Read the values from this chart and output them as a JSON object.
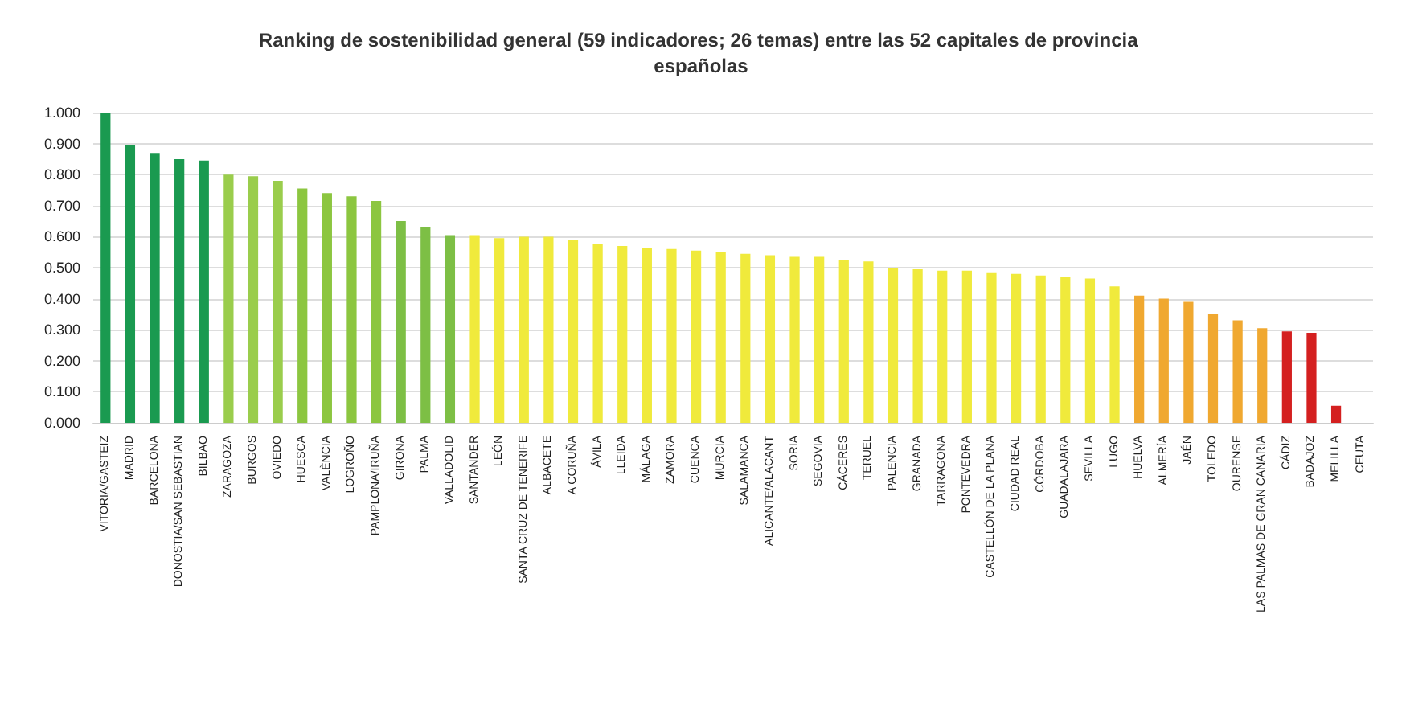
{
  "chart_data": {
    "type": "bar",
    "title": "Ranking de sostenibilidad general (59 indicadores; 26 temas) entre las 52 capitales de provincia españolas",
    "categories": [
      "VITORIA/GASTEIZ",
      "MADRID",
      "BARCELONA",
      "DONOSTIA/SAN SEBASTIAN",
      "BILBAO",
      "ZARAGOZA",
      "BURGOS",
      "OVIEDO",
      "HUESCA",
      "VALÈNCIA",
      "LOGROÑO",
      "PAMPLONA/IRUÑA",
      "GIRONA",
      "PALMA",
      "VALLADOLID",
      "SANTANDER",
      "LEÓN",
      "SANTA CRUZ DE TENERIFE",
      "ALBACETE",
      "A CORUÑA",
      "ÁVILA",
      "LLEIDA",
      "MÁLAGA",
      "ZAMORA",
      "CUENCA",
      "MURCIA",
      "SALAMANCA",
      "ALICANTE/ALACANT",
      "SORIA",
      "SEGOVIA",
      "CÁCERES",
      "TERUEL",
      "PALENCIA",
      "GRANADA",
      "TARRAGONA",
      "PONTEVEDRA",
      "CASTELLÓN DE LA PLANA",
      "CIUDAD REAL",
      "CÓRDOBA",
      "GUADALAJARA",
      "SEVILLA",
      "LUGO",
      "HUELVA",
      "ALMERÍA",
      "JAÉN",
      "TOLEDO",
      "OURENSE",
      "LAS PALMAS DE GRAN CANARIA",
      "CÁDIZ",
      "BADAJOZ",
      "MELILLA",
      "CEUTA"
    ],
    "values": [
      1.0,
      0.895,
      0.87,
      0.85,
      0.845,
      0.8,
      0.795,
      0.78,
      0.755,
      0.74,
      0.73,
      0.715,
      0.65,
      0.63,
      0.605,
      0.605,
      0.595,
      0.6,
      0.6,
      0.59,
      0.575,
      0.57,
      0.565,
      0.56,
      0.555,
      0.55,
      0.545,
      0.54,
      0.535,
      0.535,
      0.525,
      0.52,
      0.5,
      0.495,
      0.49,
      0.49,
      0.485,
      0.48,
      0.475,
      0.47,
      0.465,
      0.44,
      0.41,
      0.4,
      0.39,
      0.35,
      0.33,
      0.305,
      0.295,
      0.29,
      0.055,
      0
    ],
    "colors": [
      "#1a9a50",
      "#1a9a50",
      "#1a9a50",
      "#1a9a50",
      "#1a9a50",
      "#9acd4c",
      "#9acd4c",
      "#9acd4c",
      "#8cc640",
      "#8cc640",
      "#8cc640",
      "#8cc640",
      "#7dbf45",
      "#7dbf45",
      "#7dbf45",
      "#f0ea3c",
      "#f0ea3c",
      "#f0ea3c",
      "#f0ea3c",
      "#f0ea3c",
      "#f0ea3c",
      "#f0ea3c",
      "#f0ea3c",
      "#f0ea3c",
      "#f0ea3c",
      "#f0ea3c",
      "#f0ea3c",
      "#f0ea3c",
      "#f0ea3c",
      "#f0ea3c",
      "#f0ea3c",
      "#f0ea3c",
      "#f0ea3c",
      "#f0ea3c",
      "#f0ea3c",
      "#f0ea3c",
      "#f0ea3c",
      "#f0ea3c",
      "#f0ea3c",
      "#f0ea3c",
      "#f0ea3c",
      "#f0ea3c",
      "#f0a830",
      "#f0a830",
      "#f0a830",
      "#f0a830",
      "#f0a830",
      "#f0a830",
      "#d42020",
      "#d42020",
      "#d42020",
      "#d42020"
    ],
    "ylim": [
      0,
      1.0
    ],
    "yticks": [
      {
        "value": 0,
        "label": "0.000"
      },
      {
        "value": 0.1,
        "label": "0.100"
      },
      {
        "value": 0.2,
        "label": "0.200"
      },
      {
        "value": 0.3,
        "label": "0.300"
      },
      {
        "value": 0.4,
        "label": "0.400"
      },
      {
        "value": 0.5,
        "label": "0.500"
      },
      {
        "value": 0.6,
        "label": "0.600"
      },
      {
        "value": 0.7,
        "label": "0.700"
      },
      {
        "value": 0.8,
        "label": "0.800"
      },
      {
        "value": 0.9,
        "label": "0.900"
      },
      {
        "value": 1.0,
        "label": "1.000"
      }
    ],
    "grid": "y"
  }
}
